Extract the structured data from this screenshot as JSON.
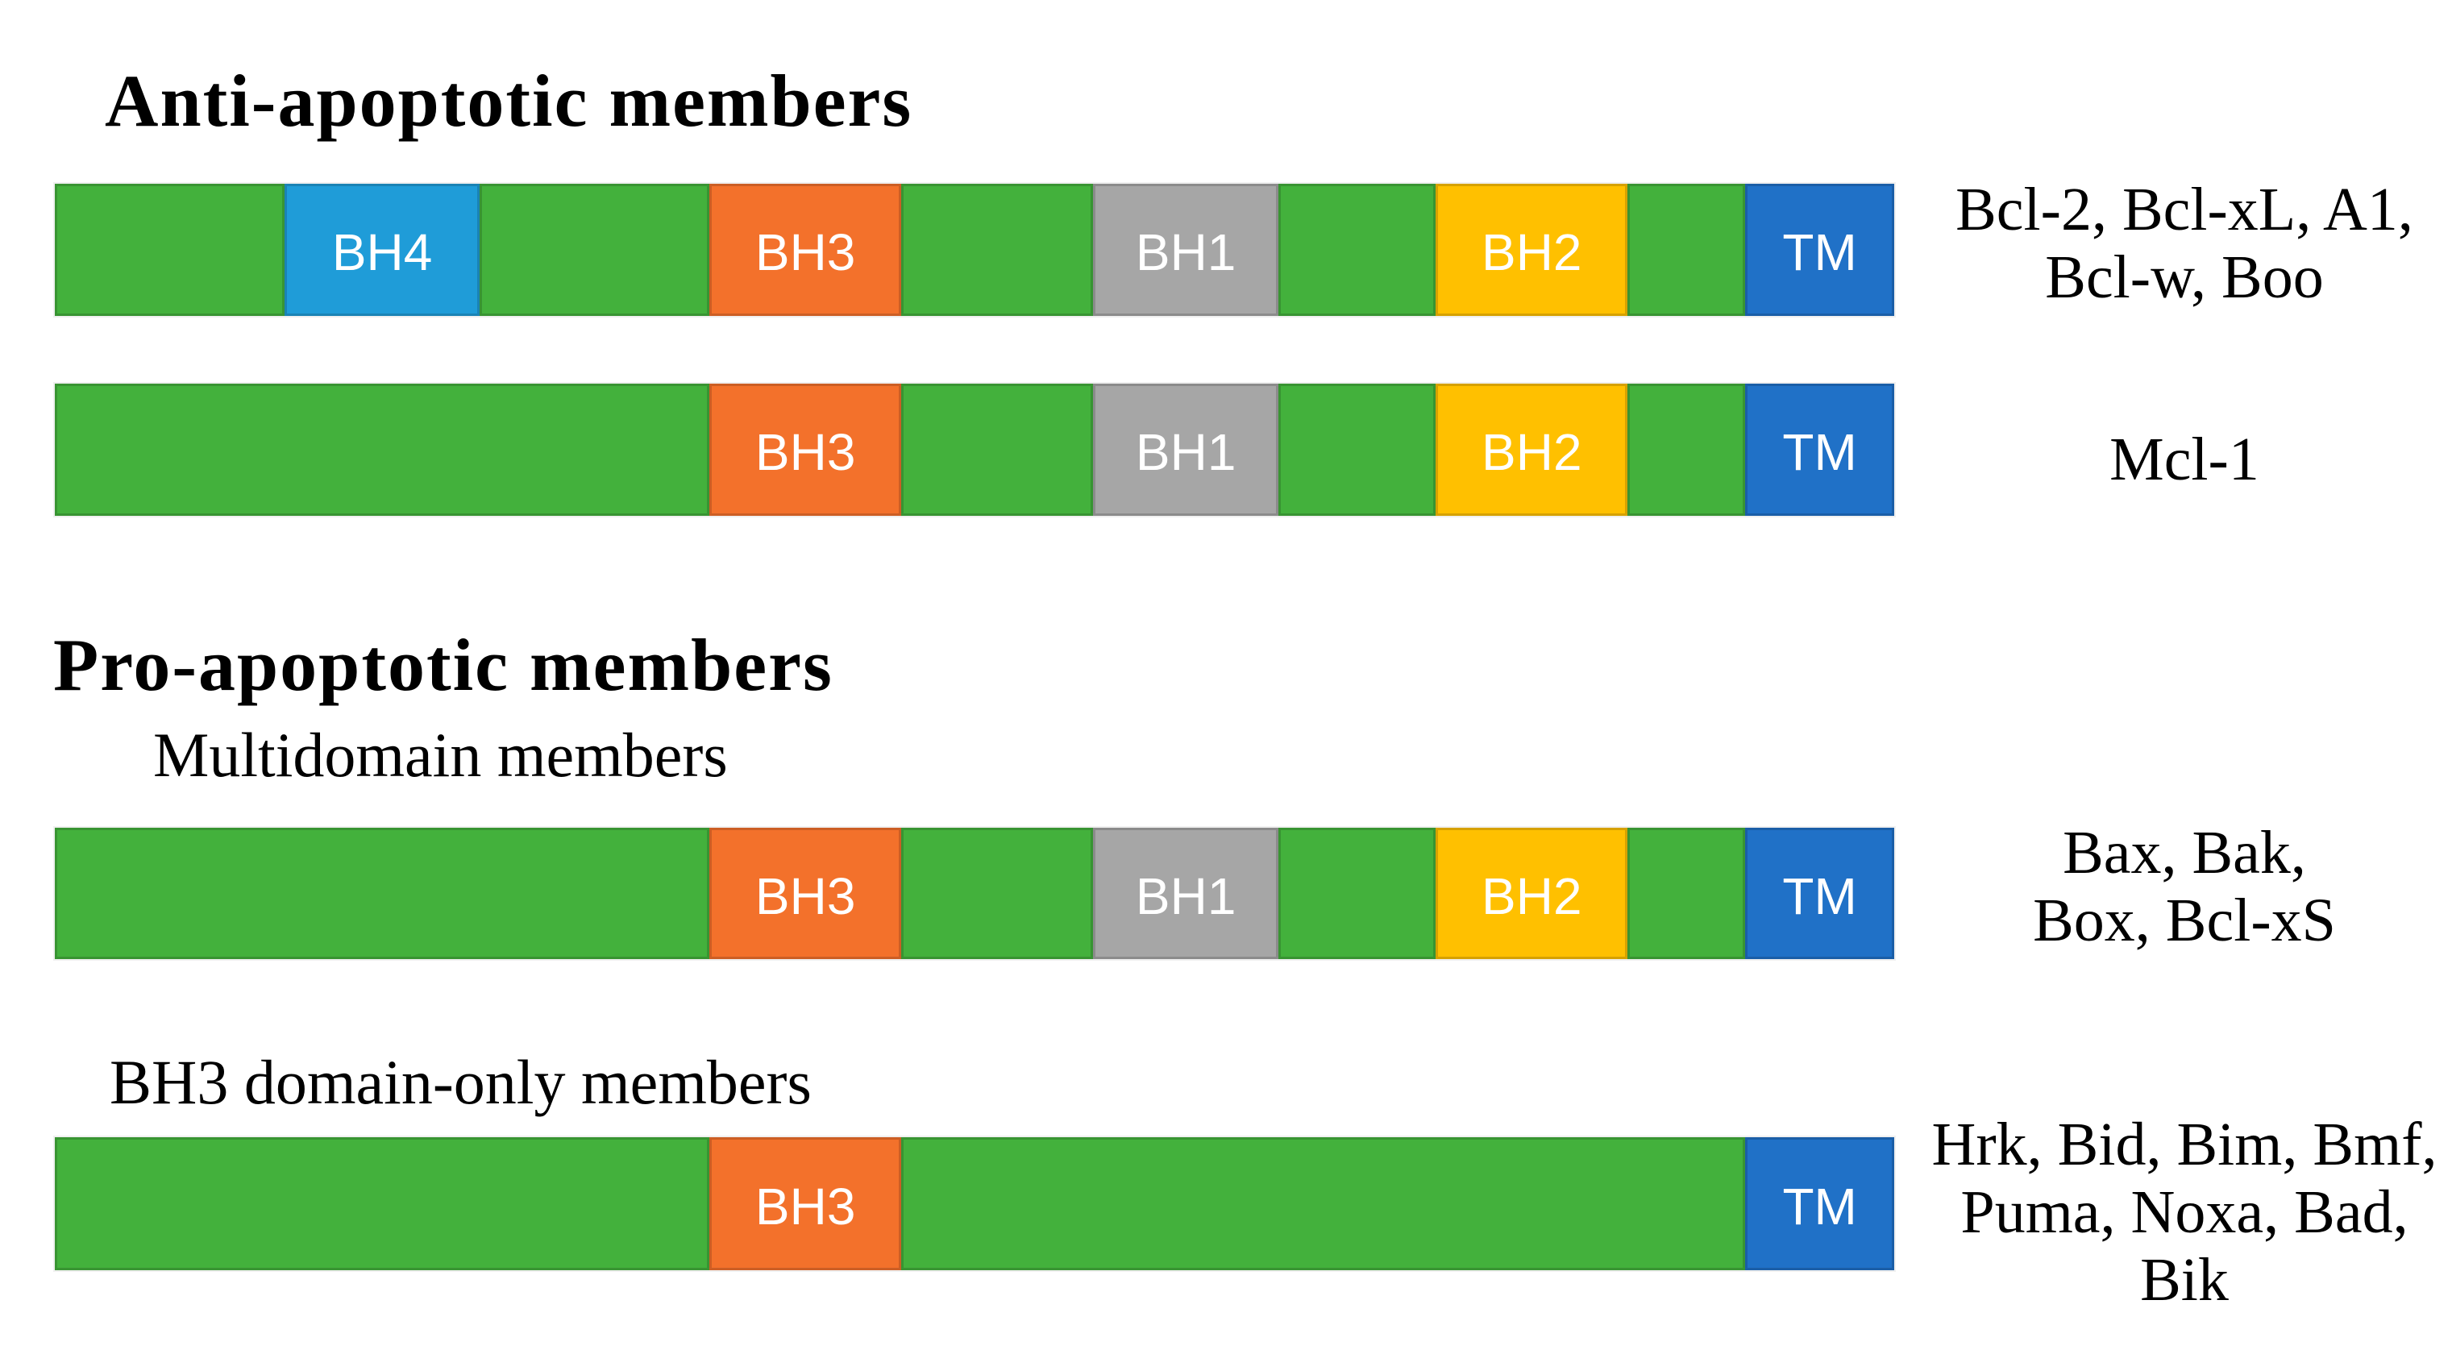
{
  "titles": {
    "anti": "Anti-apoptotic members",
    "pro": "Pro-apoptotic members",
    "multidomain": "Multidomain members",
    "bh3_only": "BH3 domain-only members"
  },
  "palette": {
    "backbone_green": "#43B13C",
    "bh4_blue": "#1F9CD8",
    "bh3_orange": "#F3712B",
    "bh1_gray": "#A6A6A6",
    "bh2_yellow": "#FFC000",
    "tm_blue": "#2071C7",
    "segment_label_text": "#FFFFFF",
    "heading_text": "#000000",
    "background": "#FFFFFF"
  },
  "bars": [
    {
      "name": "anti-apoptotic-multi-bh",
      "member_lines": [
        "Bcl-2, Bcl-xL, A1,",
        "Bcl-w, Boo"
      ],
      "segments": [
        {
          "domain": "",
          "color": "backbone_green",
          "width_pct": 12.49
        },
        {
          "domain": "BH4",
          "color": "bh4_blue",
          "width_pct": 10.61
        },
        {
          "domain": "",
          "color": "backbone_green",
          "width_pct": 12.49
        },
        {
          "domain": "BH3",
          "color": "bh3_orange",
          "width_pct": 10.43
        },
        {
          "domain": "",
          "color": "backbone_green",
          "width_pct": 10.43
        },
        {
          "domain": "BH1",
          "color": "bh1_gray",
          "width_pct": 10.08
        },
        {
          "domain": "",
          "color": "backbone_green",
          "width_pct": 8.55
        },
        {
          "domain": "BH2",
          "color": "bh2_yellow",
          "width_pct": 10.43
        },
        {
          "domain": "",
          "color": "backbone_green",
          "width_pct": 6.4
        },
        {
          "domain": "TM",
          "color": "tm_blue",
          "width_pct": 8.09
        }
      ]
    },
    {
      "name": "mcl-1",
      "member_lines": [
        "Mcl-1"
      ],
      "segments": [
        {
          "domain": "",
          "color": "backbone_green",
          "width_pct": 35.59
        },
        {
          "domain": "BH3",
          "color": "bh3_orange",
          "width_pct": 10.43
        },
        {
          "domain": "",
          "color": "backbone_green",
          "width_pct": 10.43
        },
        {
          "domain": "BH1",
          "color": "bh1_gray",
          "width_pct": 10.08
        },
        {
          "domain": "",
          "color": "backbone_green",
          "width_pct": 8.55
        },
        {
          "domain": "BH2",
          "color": "bh2_yellow",
          "width_pct": 10.43
        },
        {
          "domain": "",
          "color": "backbone_green",
          "width_pct": 6.4
        },
        {
          "domain": "TM",
          "color": "tm_blue",
          "width_pct": 8.09
        }
      ]
    },
    {
      "name": "multidomain-pro-apoptotic",
      "member_lines": [
        "Bax, Bak,",
        "Box, Bcl-xS"
      ],
      "segments": [
        {
          "domain": "",
          "color": "backbone_green",
          "width_pct": 35.59
        },
        {
          "domain": "BH3",
          "color": "bh3_orange",
          "width_pct": 10.43
        },
        {
          "domain": "",
          "color": "backbone_green",
          "width_pct": 10.43
        },
        {
          "domain": "BH1",
          "color": "bh1_gray",
          "width_pct": 10.08
        },
        {
          "domain": "",
          "color": "backbone_green",
          "width_pct": 8.55
        },
        {
          "domain": "BH2",
          "color": "bh2_yellow",
          "width_pct": 10.43
        },
        {
          "domain": "",
          "color": "backbone_green",
          "width_pct": 6.4
        },
        {
          "domain": "TM",
          "color": "tm_blue",
          "width_pct": 8.09
        }
      ]
    },
    {
      "name": "bh3-domain-only",
      "member_lines": [
        "Hrk, Bid, Bim, Bmf,",
        "Puma, Noxa, Bad,",
        "Bik"
      ],
      "segments": [
        {
          "domain": "",
          "color": "backbone_green",
          "width_pct": 35.59
        },
        {
          "domain": "BH3",
          "color": "bh3_orange",
          "width_pct": 10.43
        },
        {
          "domain": "",
          "color": "backbone_green",
          "width_pct": 45.89
        },
        {
          "domain": "TM",
          "color": "tm_blue",
          "width_pct": 8.09
        }
      ]
    }
  ]
}
